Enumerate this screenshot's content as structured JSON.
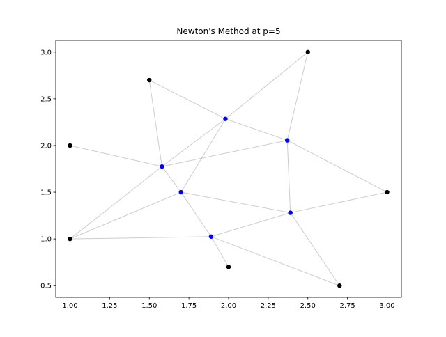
{
  "chart_data": {
    "type": "scatter",
    "title": "Newton's Method at p=5",
    "xlabel": "",
    "ylabel": "",
    "xlim": [
      0.91,
      3.09
    ],
    "ylim": [
      0.375,
      3.125
    ],
    "grid": false,
    "x_ticks": [
      1.0,
      1.25,
      1.5,
      1.75,
      2.0,
      2.25,
      2.5,
      2.75,
      3.0
    ],
    "x_tick_labels": [
      "1.00",
      "1.25",
      "1.50",
      "1.75",
      "2.00",
      "2.25",
      "2.50",
      "2.75",
      "3.00"
    ],
    "y_ticks": [
      0.5,
      1.0,
      1.5,
      2.0,
      2.5,
      3.0
    ],
    "y_tick_labels": [
      "0.5",
      "1.0",
      "1.5",
      "2.0",
      "2.5",
      "3.0"
    ],
    "fixed_points": {
      "name": "fixed",
      "color": "#000000",
      "points": [
        {
          "id": "A",
          "x": 1.0,
          "y": 2.0
        },
        {
          "id": "B",
          "x": 1.5,
          "y": 2.7
        },
        {
          "id": "C",
          "x": 2.5,
          "y": 3.0
        },
        {
          "id": "D",
          "x": 3.0,
          "y": 1.5
        },
        {
          "id": "E",
          "x": 2.7,
          "y": 0.5
        },
        {
          "id": "F",
          "x": 2.0,
          "y": 0.7
        },
        {
          "id": "G",
          "x": 1.0,
          "y": 1.0
        }
      ]
    },
    "steiner_points": {
      "name": "steiner",
      "color": "#0000ff",
      "points": [
        {
          "id": "s1",
          "x": 1.58,
          "y": 1.775
        },
        {
          "id": "s2",
          "x": 1.98,
          "y": 2.285
        },
        {
          "id": "s3",
          "x": 2.37,
          "y": 2.055
        },
        {
          "id": "s4",
          "x": 1.7,
          "y": 1.5
        },
        {
          "id": "s5",
          "x": 2.39,
          "y": 1.28
        },
        {
          "id": "s6",
          "x": 1.89,
          "y": 1.025
        }
      ]
    },
    "edges": [
      [
        "A",
        "s1"
      ],
      [
        "B",
        "s1"
      ],
      [
        "G",
        "s1"
      ],
      [
        "s1",
        "s2"
      ],
      [
        "s1",
        "s3"
      ],
      [
        "s1",
        "s4"
      ],
      [
        "B",
        "s2"
      ],
      [
        "C",
        "s2"
      ],
      [
        "s2",
        "s3"
      ],
      [
        "s2",
        "s4"
      ],
      [
        "C",
        "s3"
      ],
      [
        "D",
        "s3"
      ],
      [
        "s3",
        "s5"
      ],
      [
        "G",
        "s4"
      ],
      [
        "s4",
        "s5"
      ],
      [
        "s4",
        "s6"
      ],
      [
        "D",
        "s5"
      ],
      [
        "E",
        "s5"
      ],
      [
        "s5",
        "s6"
      ],
      [
        "G",
        "s6"
      ],
      [
        "F",
        "s6"
      ],
      [
        "E",
        "s6"
      ]
    ]
  }
}
